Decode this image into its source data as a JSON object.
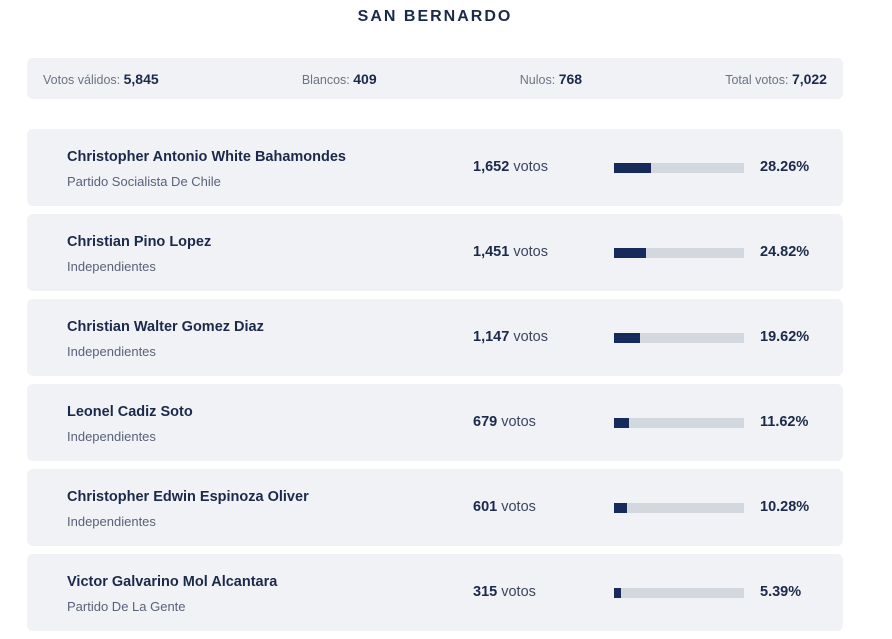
{
  "title": "SAN BERNARDO",
  "summary": {
    "validos": {
      "label": "Votos válidos:",
      "value": "5,845"
    },
    "blancos": {
      "label": "Blancos:",
      "value": "409"
    },
    "nulos": {
      "label": "Nulos:",
      "value": "768"
    },
    "total": {
      "label": "Total votos:",
      "value": "7,022"
    }
  },
  "votes_unit": "votos",
  "colors": {
    "accent": "#162a5c",
    "bar_track": "#d3d7de",
    "row_background": "#f0f2f5"
  },
  "candidates": [
    {
      "name": "Christopher Antonio White Bahamondes",
      "party": "Partido Socialista De Chile",
      "votes": "1,652",
      "percent": "28.26%",
      "share": 28.26
    },
    {
      "name": "Christian Pino Lopez",
      "party": "Independientes",
      "votes": "1,451",
      "percent": "24.82%",
      "share": 24.82
    },
    {
      "name": "Christian Walter Gomez Diaz",
      "party": "Independientes",
      "votes": "1,147",
      "percent": "19.62%",
      "share": 19.62
    },
    {
      "name": "Leonel Cadiz Soto",
      "party": "Independientes",
      "votes": "679",
      "percent": "11.62%",
      "share": 11.62
    },
    {
      "name": "Christopher Edwin Espinoza Oliver",
      "party": "Independientes",
      "votes": "601",
      "percent": "10.28%",
      "share": 10.28
    },
    {
      "name": "Victor Galvarino Mol Alcantara",
      "party": "Partido De La Gente",
      "votes": "315",
      "percent": "5.39%",
      "share": 5.39
    }
  ]
}
